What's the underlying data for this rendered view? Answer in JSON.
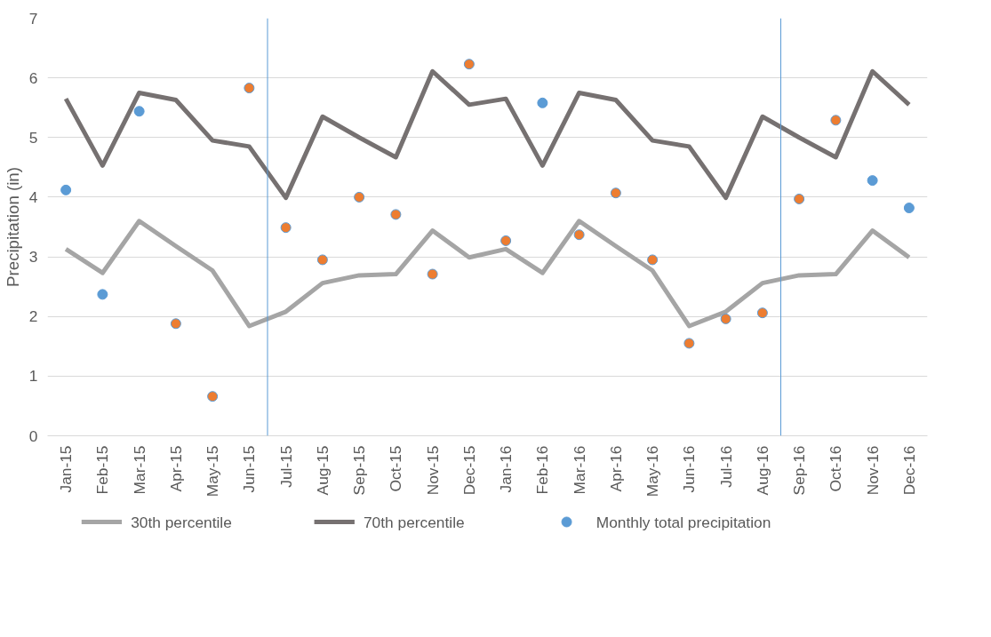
{
  "chart_data": {
    "type": "line",
    "ylabel": "Precipitation (in)",
    "categories": [
      "Jan-15",
      "Feb-15",
      "Mar-15",
      "Apr-15",
      "May-15",
      "Jun-15",
      "Jul-15",
      "Aug-15",
      "Sep-15",
      "Oct-15",
      "Nov-15",
      "Dec-15",
      "Jan-16",
      "Feb-16",
      "Mar-16",
      "Apr-16",
      "May-16",
      "Jun-16",
      "Jul-16",
      "Aug-16",
      "Sep-16",
      "Oct-16",
      "Nov-16",
      "Dec-16"
    ],
    "series": [
      {
        "name": "30th percentile",
        "color": "#a5a5a5",
        "values": [
          3.13,
          2.73,
          3.6,
          3.18,
          2.77,
          1.84,
          2.08,
          2.56,
          2.69,
          2.71,
          3.44,
          2.99,
          3.13,
          2.73,
          3.6,
          3.18,
          2.77,
          1.84,
          2.08,
          2.56,
          2.69,
          2.71,
          3.44,
          2.99
        ]
      },
      {
        "name": "70th percentile",
        "color": "#767171",
        "values": [
          5.65,
          4.53,
          5.75,
          5.63,
          4.95,
          4.85,
          3.99,
          5.35,
          5.0,
          4.67,
          6.11,
          5.55,
          5.65,
          4.53,
          5.75,
          5.63,
          4.95,
          4.85,
          3.99,
          5.35,
          5.0,
          4.67,
          6.11,
          5.55
        ]
      },
      {
        "name": "Monthly total precipitation",
        "type": "scatter",
        "color": "#5b9bd5",
        "marker": "circle",
        "colors": [
          "#5b9bd5",
          "#5b9bd5",
          "#5b9bd5",
          "#ed7d31",
          "#ed7d31",
          "#ed7d31",
          "#ed7d31",
          "#ed7d31",
          "#ed7d31",
          "#ed7d31",
          "#ed7d31",
          "#ed7d31",
          "#ed7d31",
          "#5b9bd5",
          "#ed7d31",
          "#ed7d31",
          "#ed7d31",
          "#ed7d31",
          "#ed7d31",
          "#ed7d31",
          "#ed7d31",
          "#ed7d31",
          "#5b9bd5",
          "#5b9bd5"
        ],
        "values": [
          4.12,
          2.37,
          5.44,
          1.88,
          0.66,
          5.83,
          3.49,
          2.95,
          4.0,
          3.71,
          2.71,
          6.23,
          3.27,
          5.58,
          3.37,
          4.07,
          2.95,
          1.55,
          1.96,
          2.06,
          3.97,
          5.29,
          4.28,
          3.82
        ]
      }
    ],
    "ylim": [
      0,
      7
    ],
    "yticks": [
      0,
      1,
      2,
      3,
      4,
      5,
      6,
      7
    ],
    "grid": "y",
    "legend": "bottom"
  }
}
